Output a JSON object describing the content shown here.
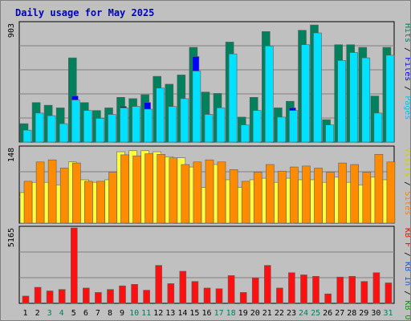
{
  "chart_data": {
    "type": "bar",
    "title": "Daily usage for May 2025",
    "categories": [
      "1",
      "2",
      "3",
      "4",
      "5",
      "6",
      "7",
      "8",
      "9",
      "10",
      "11",
      "12",
      "13",
      "14",
      "15",
      "16",
      "17",
      "18",
      "19",
      "20",
      "21",
      "22",
      "23",
      "24",
      "25",
      "26",
      "27",
      "28",
      "29",
      "30",
      "31"
    ],
    "weekend_days": [
      "3",
      "4",
      "10",
      "11",
      "17",
      "18",
      "24",
      "25",
      "31"
    ],
    "panels": [
      {
        "id": "hits",
        "ymax_label": "903",
        "ylim": [
          0,
          903
        ],
        "right_label": [
          {
            "text": "Hits",
            "color": "#00805c"
          },
          {
            "text": " / ",
            "color": "#000000"
          },
          {
            "text": "Files",
            "color": "#0000ff"
          },
          {
            "text": " / ",
            "color": "#000000"
          },
          {
            "text": "Pages",
            "color": "#00c0ff"
          }
        ],
        "series": [
          {
            "name": "Hits",
            "color": "#00805c",
            "values": [
              140,
              300,
              280,
              260,
              640,
              300,
              240,
              260,
              340,
              330,
              360,
              500,
              440,
              510,
              720,
              380,
              370,
              760,
              190,
              340,
              840,
              260,
              310,
              850,
              890,
              170,
              740,
              740,
              720,
              350,
              720
            ]
          },
          {
            "name": "Files",
            "color": "#0000ff",
            "values": [
              90,
              180,
              170,
              110,
              350,
              210,
              160,
              180,
              270,
              270,
              300,
              410,
              240,
              290,
              650,
              210,
              240,
              520,
              110,
              240,
              580,
              180,
              260,
              630,
              690,
              110,
              560,
              560,
              500,
              190,
              530
            ]
          },
          {
            "name": "Pages",
            "color": "#00e0ff",
            "values": [
              90,
              220,
              200,
              140,
              320,
              240,
              180,
              210,
              260,
              270,
              250,
              410,
              270,
              330,
              540,
              210,
              260,
              670,
              130,
              240,
              730,
              190,
              240,
              740,
              830,
              130,
              620,
              680,
              640,
              220,
              660
            ]
          }
        ]
      },
      {
        "id": "visits",
        "ymax_label": "148",
        "ylim": [
          0,
          148
        ],
        "right_label": [
          {
            "text": "Visits",
            "color": "#d0d000"
          },
          {
            "text": " / ",
            "color": "#000000"
          },
          {
            "text": "Sites",
            "color": "#ff8000"
          }
        ],
        "series": [
          {
            "name": "Visits",
            "color": "#ffff40",
            "values": [
              60,
              80,
              80,
              75,
              120,
              85,
              80,
              85,
              140,
              142,
              142,
              140,
              130,
              128,
              110,
              70,
              115,
              85,
              70,
              85,
              88,
              80,
              88,
              85,
              85,
              80,
              90,
              80,
              75,
              90,
              85
            ]
          },
          {
            "name": "Sites",
            "color": "#ff8c00",
            "values": [
              82,
              120,
              124,
              108,
              118,
              82,
              82,
              100,
              134,
              132,
              136,
              135,
              128,
              115,
              120,
              124,
              120,
              105,
              82,
              100,
              115,
              102,
              110,
              112,
              108,
              100,
              118,
              115,
              100,
              135,
              120
            ]
          }
        ]
      },
      {
        "id": "kbytes",
        "ymax_label": "5165",
        "ylim": [
          0,
          5165
        ],
        "right_label": [
          {
            "text": "KB F",
            "color": "#ff0000"
          },
          {
            "text": " / ",
            "color": "#000000"
          },
          {
            "text": "KB In",
            "color": "#0060ff"
          },
          {
            "text": " / ",
            "color": "#000000"
          },
          {
            "text": "KB Out",
            "color": "#00a000"
          }
        ],
        "series": [
          {
            "name": "KB F",
            "color": "#ff1010",
            "values": [
              500,
              1100,
              850,
              950,
              5165,
              1050,
              750,
              950,
              1200,
              1300,
              900,
              2600,
              1350,
              2200,
              1500,
              1050,
              1000,
              1900,
              750,
              1750,
              2600,
              1050,
              2100,
              1950,
              1850,
              650,
              1800,
              1850,
              1500,
              2100,
              1400
            ]
          }
        ]
      }
    ]
  }
}
